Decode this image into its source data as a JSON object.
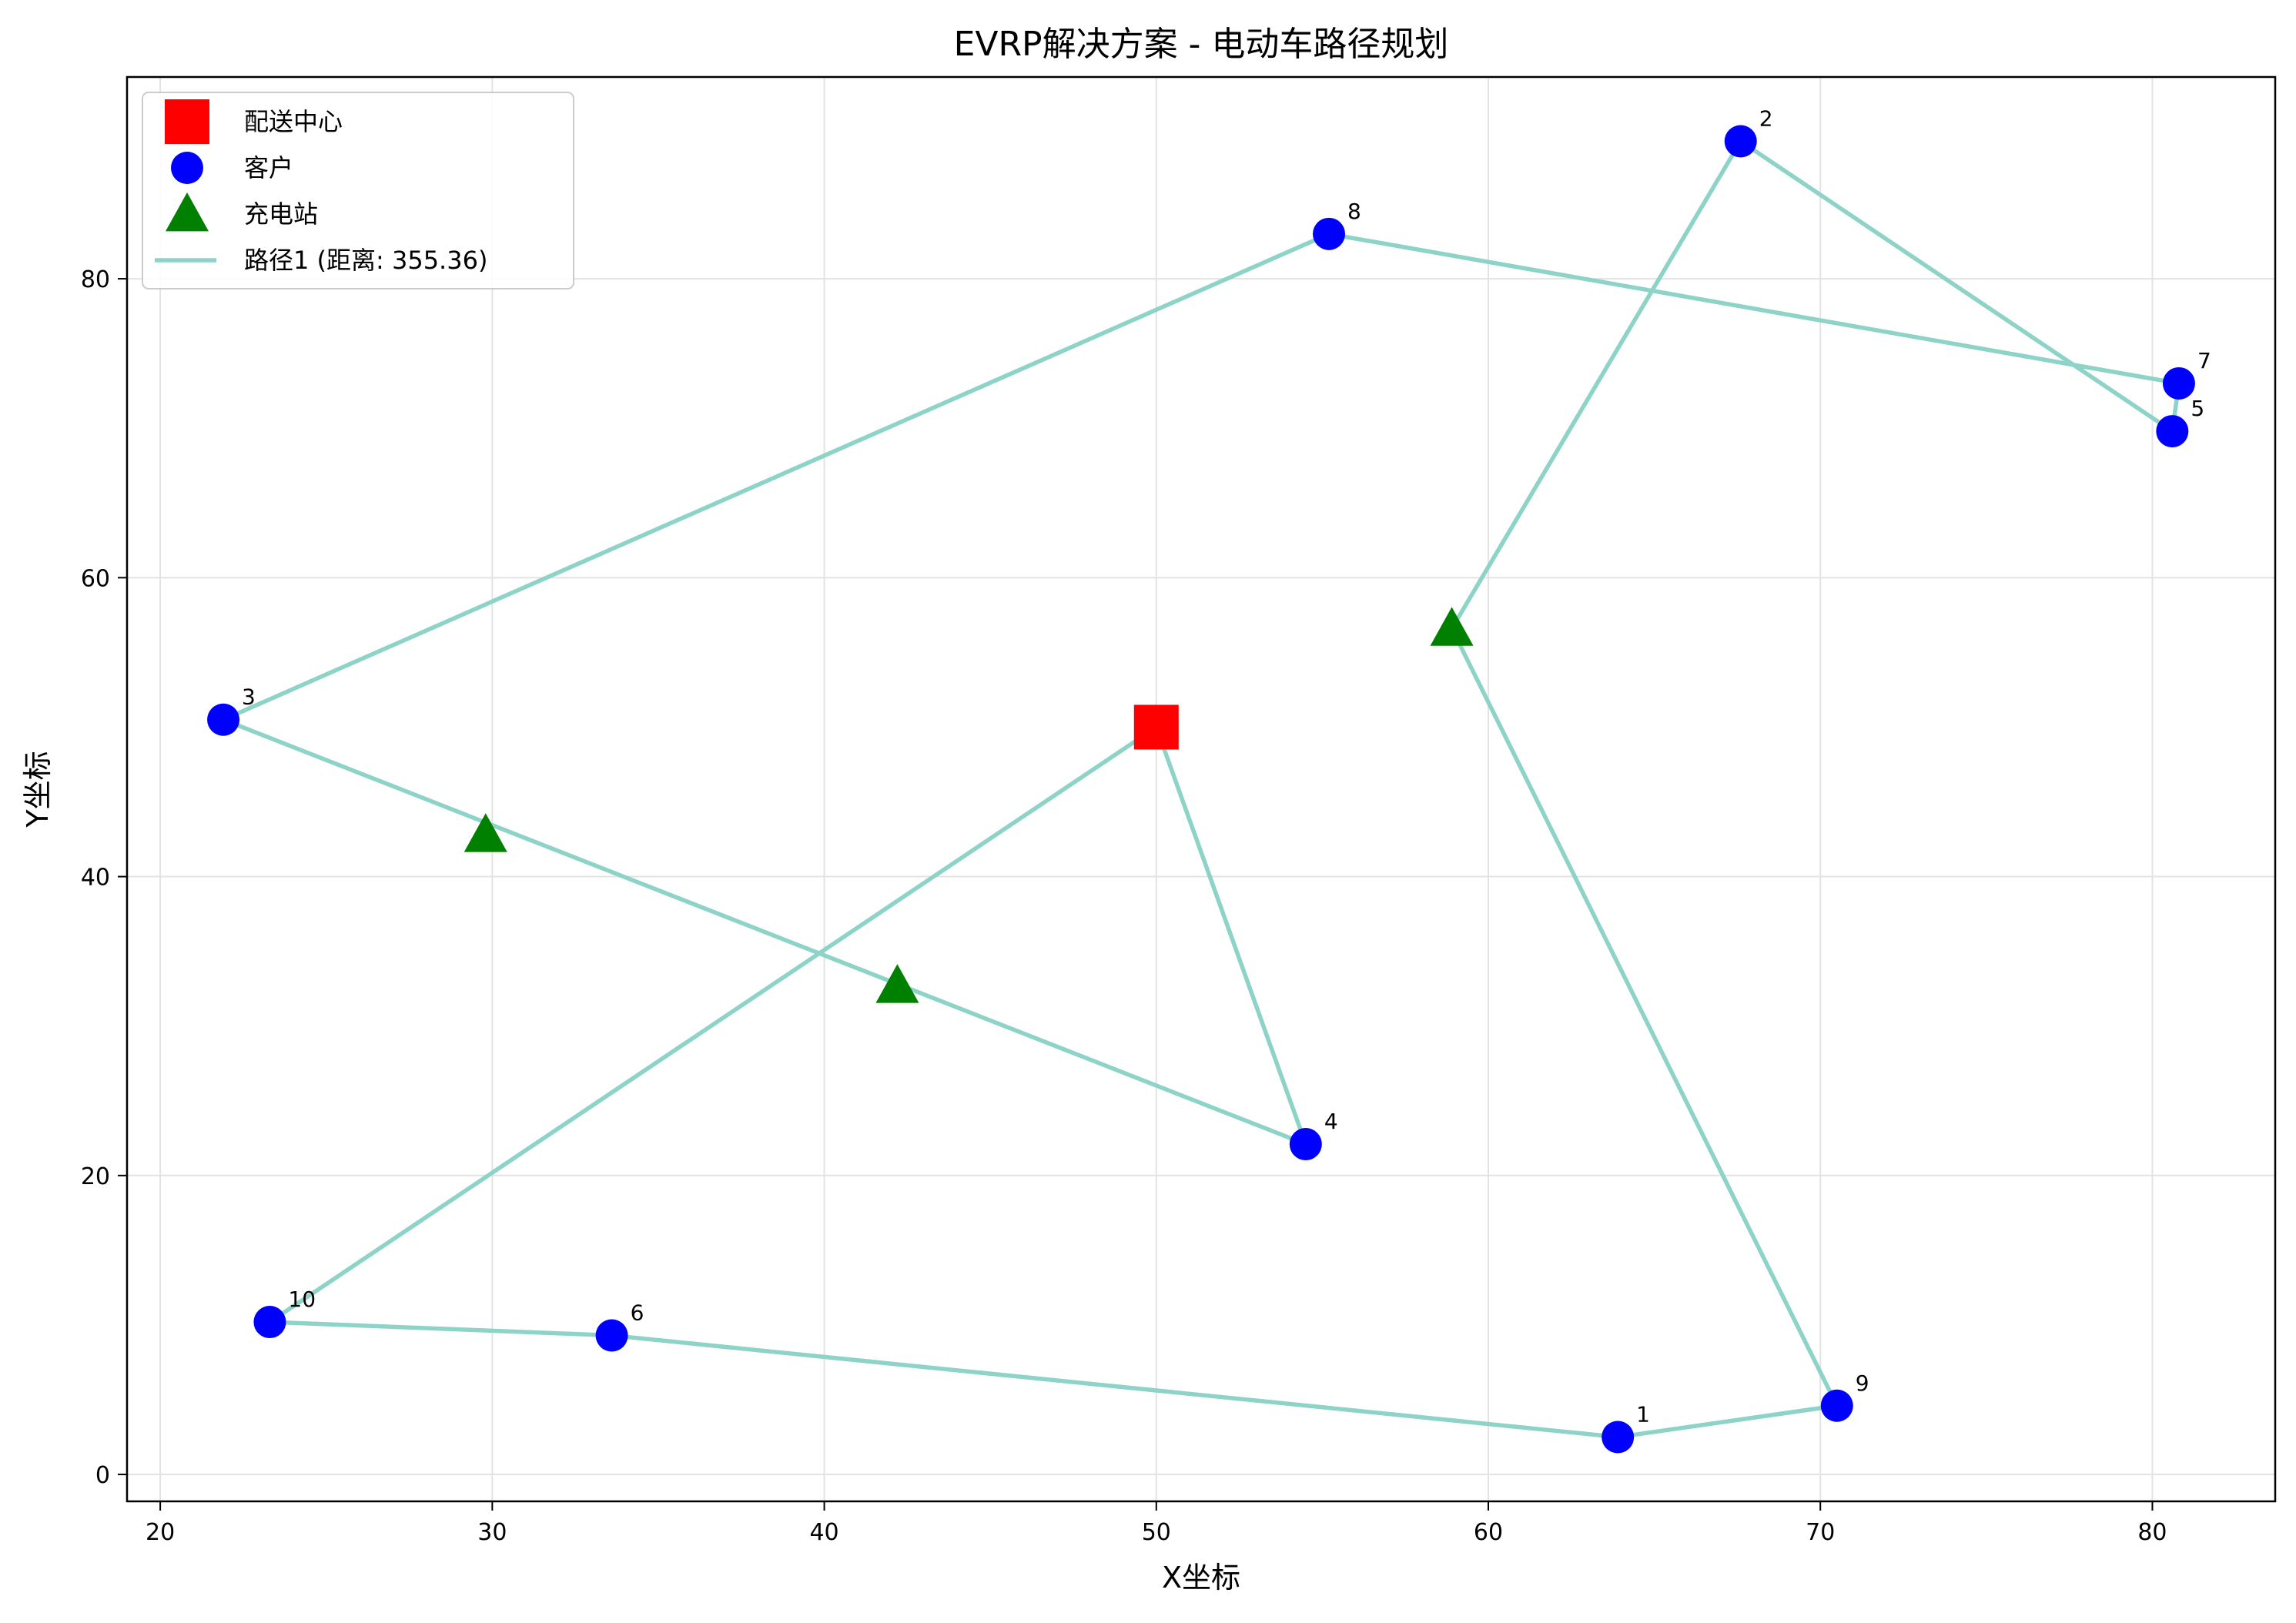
{
  "chart_data": {
    "type": "scatter",
    "title": "EVRP解决方案 - 电动车路径规划",
    "xlabel": "X坐标",
    "ylabel": "Y坐标",
    "xlim": [
      19,
      83.7
    ],
    "ylim": [
      -1.8,
      93.5
    ],
    "xticks": [
      20,
      30,
      40,
      50,
      60,
      70,
      80
    ],
    "yticks": [
      0,
      20,
      40,
      60,
      80
    ],
    "grid": true,
    "legend": {
      "position": "top-left",
      "entries": [
        {
          "label": "配送中心",
          "marker": "square",
          "color": "#ff0000"
        },
        {
          "label": "客户",
          "marker": "circle",
          "color": "#0000ff"
        },
        {
          "label": "充电站",
          "marker": "triangle",
          "color": "#008000"
        },
        {
          "label": "路径1 (距离: 355.36)",
          "marker": "line",
          "color": "#8dd3c7"
        }
      ]
    },
    "depot": {
      "x": 50,
      "y": 50,
      "color": "#ff0000"
    },
    "customers": [
      {
        "label": "1",
        "x": 63.9,
        "y": 2.5
      },
      {
        "label": "2",
        "x": 67.6,
        "y": 89.2
      },
      {
        "label": "3",
        "x": 21.9,
        "y": 50.5
      },
      {
        "label": "4",
        "x": 54.5,
        "y": 22.1
      },
      {
        "label": "5",
        "x": 80.6,
        "y": 69.8
      },
      {
        "label": "6",
        "x": 33.6,
        "y": 9.3
      },
      {
        "label": "7",
        "x": 80.8,
        "y": 73.0
      },
      {
        "label": "8",
        "x": 55.2,
        "y": 83.0
      },
      {
        "label": "9",
        "x": 70.5,
        "y": 4.6
      },
      {
        "label": "10",
        "x": 23.3,
        "y": 10.2
      }
    ],
    "customer_color": "#0000ff",
    "charging_stations": [
      {
        "x": 29.8,
        "y": 42.8
      },
      {
        "x": 42.2,
        "y": 32.7
      },
      {
        "x": 58.9,
        "y": 56.6
      }
    ],
    "station_color": "#008000",
    "series": [
      {
        "name": "路径1 (距离: 355.36)",
        "color": "#8dd3c7",
        "points": [
          {
            "x": 50,
            "y": 50
          },
          {
            "x": 54.5,
            "y": 22.1
          },
          {
            "x": 21.9,
            "y": 50.5
          },
          {
            "x": 55.2,
            "y": 83.0
          },
          {
            "x": 80.8,
            "y": 73.0
          },
          {
            "x": 80.6,
            "y": 69.8
          },
          {
            "x": 67.6,
            "y": 89.2
          },
          {
            "x": 58.9,
            "y": 56.6
          },
          {
            "x": 70.5,
            "y": 4.6
          },
          {
            "x": 63.9,
            "y": 2.5
          },
          {
            "x": 33.6,
            "y": 9.3
          },
          {
            "x": 23.3,
            "y": 10.2
          },
          {
            "x": 50,
            "y": 50
          }
        ]
      }
    ]
  }
}
